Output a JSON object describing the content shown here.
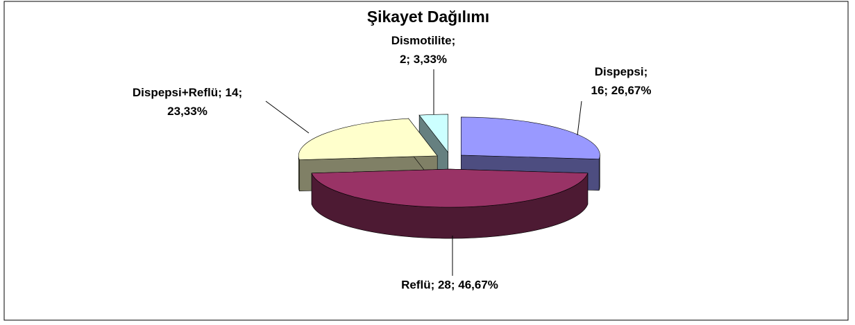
{
  "chart_data": {
    "type": "pie",
    "title": "Şikayet Dağılımı",
    "categories": [
      "Dispepsi",
      "Reflü",
      "Dispepsi+Reflü",
      "Dismotilite"
    ],
    "values": [
      16,
      28,
      14,
      2
    ],
    "value_labels": [
      "Dispepsi; 16; 26,67%",
      "Reflü; 28; 46,67%",
      "Dispepsi+Reflü; 14; 23,33%",
      "Dismotilite; 2; 3,33%"
    ],
    "colors": [
      "#9999ff",
      "#993366",
      "#ffffcc",
      "#ccffff"
    ]
  }
}
